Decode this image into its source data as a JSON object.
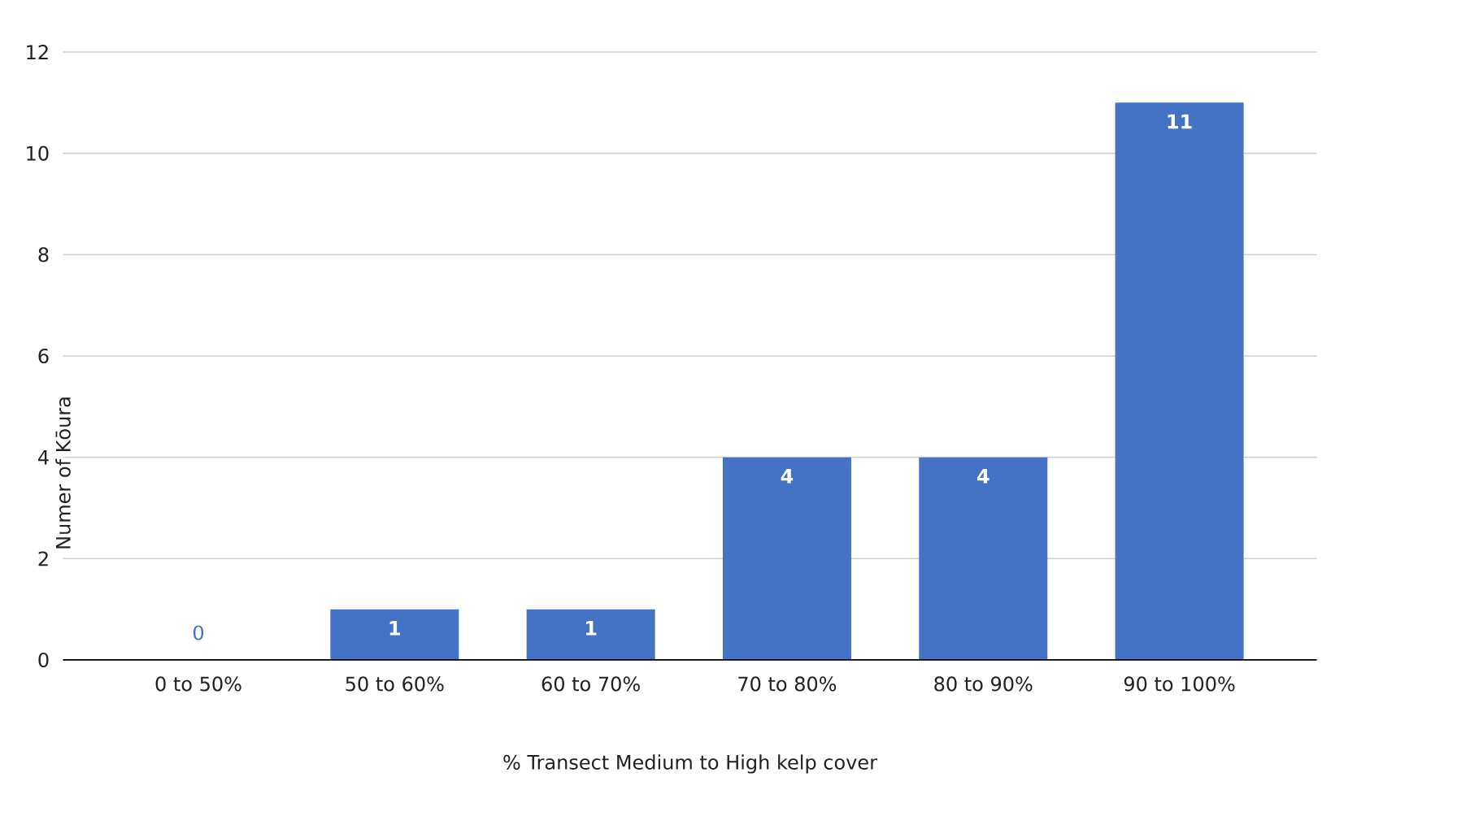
{
  "chart_data": {
    "type": "bar",
    "xlabel": "% Transect Medium to High kelp cover",
    "ylabel": "Numer of Kōura",
    "categories": [
      "0 to 50%",
      "50 to 60%",
      "60 to 70%",
      "70 to 80%",
      "80 to 90%",
      "90 to 100%"
    ],
    "values": [
      0,
      1,
      1,
      4,
      4,
      11
    ],
    "color": "#4472c4",
    "ylim": [
      0,
      12
    ],
    "yticks": [
      0,
      2,
      4,
      6,
      8,
      10,
      12
    ],
    "grid": "y",
    "data_labels": true
  }
}
